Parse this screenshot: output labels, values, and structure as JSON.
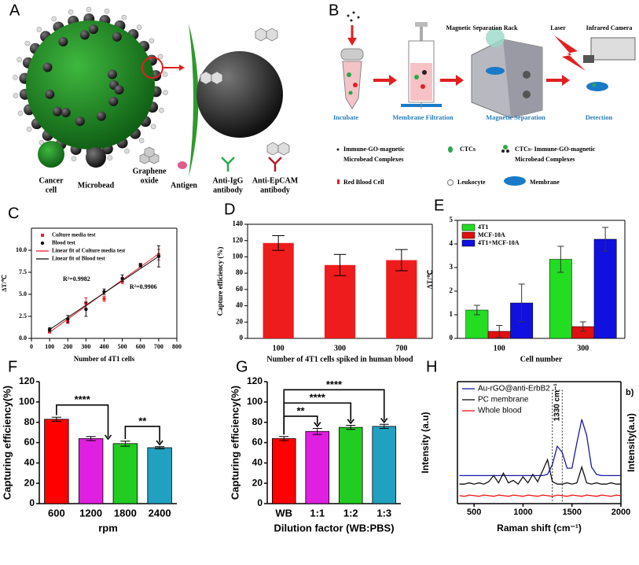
{
  "panel_a": {
    "label": "A",
    "legend": [
      [
        "Cancer",
        "cell"
      ],
      [
        "Microbead"
      ],
      [
        "Graphene",
        "oxide"
      ],
      [
        "Antigen"
      ],
      [
        "Anti-IgG",
        "antibody"
      ],
      [
        "Anti-EpCAM",
        "antibody"
      ]
    ]
  },
  "panel_b": {
    "label": "B",
    "labels": [
      "Magnetic Separation Rack",
      "Laser",
      "Infrared Camera"
    ],
    "steps": [
      "Incubate",
      "Membrane Filtration",
      "Magnetic Separation",
      "Detection"
    ],
    "legend": [
      [
        "Immune-GO-magnetic",
        "Microbead Complexes"
      ],
      [
        "CTCs"
      ],
      [
        "CTCs- Immune-GO-magnetic",
        "Microbead Complexes"
      ],
      [
        "Red Blood Cell"
      ],
      [
        "Leukocyte"
      ],
      [
        "Membrane"
      ]
    ]
  },
  "chart_data": [
    {
      "type": "scatter",
      "panel_label": "C",
      "xlabel": "Number of 4T1 cells",
      "ylabel": "ΔT/℃",
      "box": true,
      "legend": "upper left",
      "xlim": [
        0,
        800
      ],
      "xticks": [
        0,
        100,
        200,
        300,
        400,
        500,
        600,
        700,
        800
      ],
      "ylim": [
        0,
        12.5
      ],
      "yticks": [
        {
          "value": 0,
          "label": "0.0"
        },
        {
          "value": 2.5,
          "label": "2.5"
        },
        {
          "value": 5,
          "label": "5.0"
        },
        {
          "value": 7.5,
          "label": "7.5"
        },
        {
          "value": 10,
          "label": "10.0"
        }
      ],
      "series": [
        {
          "name": "Culture media test",
          "color": "#e8202a",
          "marker": "square",
          "x": [
            100,
            200,
            300,
            400,
            500,
            600,
            700
          ],
          "values": [
            0.8,
            2.0,
            4.0,
            4.5,
            6.5,
            8.3,
            9.5
          ],
          "errors": [
            0.2,
            0.3,
            0.6,
            0.3,
            0.3,
            0.2,
            0.6
          ]
        },
        {
          "name": "Blood test",
          "color": "#111111",
          "marker": "circle",
          "x": [
            100,
            200,
            300,
            400,
            500,
            600,
            700
          ],
          "values": [
            1.0,
            2.2,
            3.3,
            5.3,
            6.8,
            8.3,
            9.3
          ],
          "errors": [
            0.2,
            0.4,
            0.8,
            0.3,
            0.4,
            0.2,
            1.2
          ]
        }
      ],
      "fits": [
        {
          "name": "Linear fit of Culture media test",
          "color": "#e8202a",
          "x": [
            100,
            700
          ],
          "values": [
            0.7,
            9.6
          ]
        },
        {
          "name": "Linear fit of Blood test",
          "color": "#111111",
          "x": [
            100,
            700
          ],
          "values": [
            1.0,
            9.3
          ]
        }
      ],
      "annotations": [
        {
          "text": "R²=0.9982",
          "color": "#111111"
        },
        {
          "text": "R²=0.9906",
          "color": "#e8202a"
        }
      ]
    },
    {
      "type": "bar",
      "panel_label": "D",
      "xlabel": "Number of 4T1 cells spiked in human blood",
      "ylabel": "Capture efficiency (%)",
      "box": true,
      "categories": [
        "100",
        "300",
        "700"
      ],
      "values": [
        117,
        90,
        96
      ],
      "errors": [
        9,
        13,
        13
      ],
      "color": "#ee1c1c",
      "ylim": [
        0,
        140
      ],
      "yticks": [
        0,
        20,
        40,
        60,
        80,
        100,
        120,
        140
      ]
    },
    {
      "type": "grouped_bar",
      "panel_label": "E",
      "xlabel": "Cell number",
      "ylabel": "ΔT/℃",
      "box": true,
      "legend": "upper left",
      "categories": [
        "100",
        "300"
      ],
      "series": [
        {
          "name": "4T1",
          "color": "#22dd22",
          "values": [
            1.2,
            3.35
          ],
          "errors": [
            0.2,
            0.55
          ]
        },
        {
          "name": "MCF-10A",
          "color": "#e01010",
          "values": [
            0.3,
            0.5
          ],
          "errors": [
            0.25,
            0.2
          ]
        },
        {
          "name": "4T1+MCF-10A",
          "color": "#1010e0",
          "values": [
            1.5,
            4.2
          ],
          "errors": [
            0.8,
            0.5
          ]
        }
      ],
      "ylim": [
        0,
        5
      ],
      "yticks": [
        0,
        1,
        2,
        3,
        4,
        5
      ]
    },
    {
      "type": "bar",
      "panel_label": "F",
      "xlabel": "rpm",
      "ylabel": "Capturing efficiency(%)",
      "box": false,
      "categories": [
        "600",
        "1200",
        "1800",
        "2400"
      ],
      "values": [
        83,
        64,
        59,
        55
      ],
      "errors": [
        2,
        2,
        2.5,
        1
      ],
      "colors": [
        "#ff0000",
        "#e020e0",
        "#22cc22",
        "#22a0c0"
      ],
      "ylim": [
        0,
        120
      ],
      "yticks": [
        0,
        20,
        40,
        60,
        80,
        100,
        120
      ],
      "annotations": [
        {
          "text": "****"
        },
        {
          "text": "**"
        }
      ]
    },
    {
      "type": "bar",
      "panel_label": "G",
      "xlabel": "Dilution factor (WB:PBS)",
      "ylabel": "Capturing efficiency(%)",
      "box": false,
      "categories": [
        "WB",
        "1:1",
        "1:2",
        "1:3"
      ],
      "values": [
        64,
        71,
        75,
        76
      ],
      "errors": [
        2,
        3,
        2,
        2
      ],
      "colors": [
        "#ff0000",
        "#e020e0",
        "#22cc22",
        "#22a0c0"
      ],
      "ylim": [
        0,
        120
      ],
      "yticks": [
        0,
        20,
        40,
        60,
        80,
        100,
        120
      ],
      "annotations": [
        {
          "text": "**"
        },
        {
          "text": "****"
        },
        {
          "text": "****"
        }
      ]
    },
    {
      "type": "line",
      "panel_label": "H",
      "xlabel": "Raman shift (cm⁻¹)",
      "ylabel": "Intensity (a.u)",
      "y2label": "Intensity(a.u)",
      "box": true,
      "legend": "upper left",
      "xlim": [
        330,
        2000
      ],
      "xticks": [
        500,
        1000,
        1500,
        2000
      ],
      "ylim": [
        0,
        10
      ],
      "x": [
        350,
        400,
        450,
        500,
        550,
        600,
        650,
        700,
        750,
        800,
        850,
        900,
        950,
        1000,
        1050,
        1100,
        1150,
        1200,
        1250,
        1300,
        1350,
        1400,
        1450,
        1500,
        1550,
        1600,
        1650,
        1700,
        1750,
        1800,
        1850,
        1900,
        1950,
        2000
      ],
      "series": [
        {
          "name": "Au-rGO@anti-ErbB2",
          "color": "#1a1aaa",
          "values": [
            2.3,
            2.3,
            2.3,
            2.3,
            2.3,
            2.3,
            2.3,
            2.3,
            2.3,
            2.3,
            2.3,
            2.3,
            2.3,
            2.3,
            2.3,
            2.3,
            2.3,
            2.3,
            2.4,
            3.2,
            4.7,
            4.2,
            2.9,
            2.9,
            5.0,
            6.9,
            5.6,
            3.0,
            2.4,
            2.3,
            2.3,
            2.3,
            2.3,
            2.3
          ]
        },
        {
          "name": "PC membrane",
          "color": "#111111",
          "values": [
            1.6,
            1.6,
            1.7,
            1.6,
            1.7,
            1.6,
            1.8,
            2.3,
            1.7,
            2.5,
            1.7,
            1.9,
            1.6,
            2.2,
            1.7,
            2.4,
            1.8,
            2.7,
            3.6,
            1.8,
            1.6,
            1.6,
            1.7,
            1.6,
            1.7,
            3.0,
            1.7,
            1.6,
            1.7,
            1.6,
            1.6,
            1.7,
            1.6,
            1.6
          ]
        },
        {
          "name": "Whole blood",
          "color": "#ee1111",
          "values": [
            0.65,
            0.6,
            0.7,
            0.65,
            0.6,
            0.7,
            0.65,
            0.6,
            0.7,
            0.65,
            0.6,
            0.7,
            0.65,
            0.6,
            0.7,
            0.65,
            0.6,
            0.7,
            0.65,
            0.6,
            0.7,
            0.65,
            0.6,
            0.7,
            0.65,
            0.6,
            0.7,
            0.65,
            0.6,
            0.7,
            0.65,
            0.6,
            0.7,
            0.65
          ]
        }
      ],
      "annotations": [
        {
          "text": "1330 cm⁻¹"
        },
        {
          "text": "b)"
        }
      ]
    }
  ]
}
